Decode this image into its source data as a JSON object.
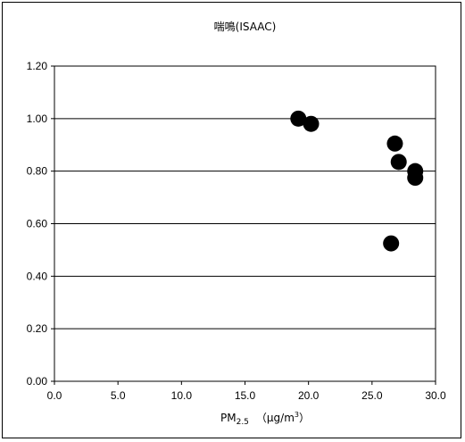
{
  "chart_data": {
    "type": "scatter",
    "title": "喘鳴(ISAAC)",
    "xlabel": {
      "main": "PM",
      "sub": "2.5",
      "unit_prefix": "（μg/m",
      "unit_sup": "3",
      "unit_suffix": "）"
    },
    "ylabel": "",
    "xlim": [
      0,
      30
    ],
    "ylim": [
      0,
      1.2
    ],
    "x_ticks": [
      "0.0",
      "5.0",
      "10.0",
      "15.0",
      "20.0",
      "25.0",
      "30.0"
    ],
    "y_ticks": [
      "0.00",
      "0.20",
      "0.40",
      "0.60",
      "0.80",
      "1.00",
      "1.20"
    ],
    "grid": "horizontal",
    "legend": "none",
    "marker_color": "#000000",
    "points": [
      {
        "x": 19.2,
        "y": 1.0
      },
      {
        "x": 20.2,
        "y": 0.98
      },
      {
        "x": 26.8,
        "y": 0.905
      },
      {
        "x": 27.1,
        "y": 0.835
      },
      {
        "x": 28.4,
        "y": 0.8
      },
      {
        "x": 28.4,
        "y": 0.775
      },
      {
        "x": 26.5,
        "y": 0.525
      }
    ]
  }
}
